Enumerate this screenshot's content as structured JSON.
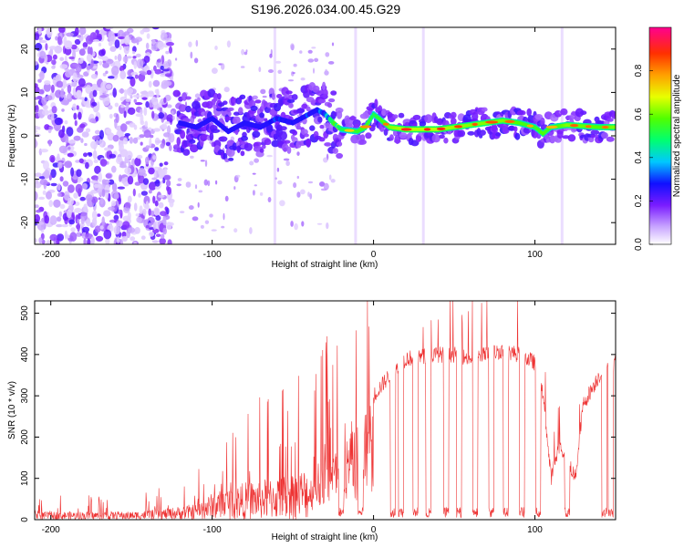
{
  "title": "S196.2026.034.00.45.G29",
  "chart_data": [
    {
      "type": "heatmap",
      "xlabel": "Height of straight line (km)",
      "ylabel": "Frequency (Hz)",
      "xlim": [
        -210,
        150
      ],
      "ylim": [
        -25,
        25
      ],
      "xticks": [
        -200,
        -100,
        0,
        100
      ],
      "yticks": [
        -20,
        -10,
        0,
        10,
        20
      ],
      "ridge": {
        "x": [
          -120,
          -110,
          -100,
          -90,
          -80,
          -70,
          -60,
          -50,
          -40,
          -35,
          -30,
          -25,
          -20,
          -10,
          -5,
          0,
          10,
          20,
          40,
          60,
          70,
          80,
          90,
          100,
          105,
          110,
          120,
          140,
          150
        ],
        "freq": [
          3,
          2,
          4,
          1,
          3,
          2,
          4,
          3,
          5,
          6,
          5,
          3,
          1.5,
          1,
          2,
          5,
          2,
          1.5,
          1.5,
          2.5,
          3,
          3.5,
          3,
          2,
          0.5,
          2,
          2.5,
          2,
          2
        ],
        "amplitude": [
          0.15,
          0.2,
          0.25,
          0.2,
          0.25,
          0.2,
          0.3,
          0.25,
          0.3,
          0.3,
          0.35,
          0.6,
          0.7,
          0.75,
          0.8,
          0.7,
          0.85,
          0.9,
          0.9,
          0.85,
          0.85,
          0.85,
          0.8,
          0.75,
          0.8,
          0.75,
          0.85,
          0.8,
          0.85
        ]
      },
      "colorbar": {
        "label": "Normalized spectral amplitude",
        "ticks": [
          "0.0",
          "0.2",
          "0.4",
          "0.6",
          "0.8"
        ],
        "range": [
          0,
          1
        ]
      }
    },
    {
      "type": "line",
      "xlabel": "Height of straight line (km)",
      "ylabel": "SNR (10 * v/v)",
      "xlim": [
        -210,
        150
      ],
      "ylim": [
        0,
        530
      ],
      "xticks": [
        -200,
        -100,
        0,
        100
      ],
      "yticks": [
        0,
        100,
        200,
        300,
        400,
        500
      ],
      "color": "#ee3333",
      "envelope": {
        "x": [
          -210,
          -180,
          -150,
          -130,
          -110,
          -100,
          -80,
          -60,
          -40,
          -30,
          -20,
          -10,
          0,
          10,
          20,
          30,
          40,
          50,
          60,
          70,
          80,
          90,
          100,
          105,
          110,
          115,
          120,
          125,
          130,
          140,
          150
        ],
        "base": [
          15,
          15,
          15,
          20,
          30,
          50,
          70,
          80,
          100,
          150,
          180,
          230,
          300,
          350,
          390,
          395,
          400,
          400,
          390,
          400,
          410,
          400,
          380,
          300,
          100,
          180,
          150,
          100,
          280,
          350,
          380
        ]
      },
      "dropouts_x": [
        -20,
        -8,
        12,
        17,
        26,
        34,
        45,
        53,
        63,
        73,
        82,
        92,
        102,
        120,
        143,
        147
      ]
    }
  ]
}
